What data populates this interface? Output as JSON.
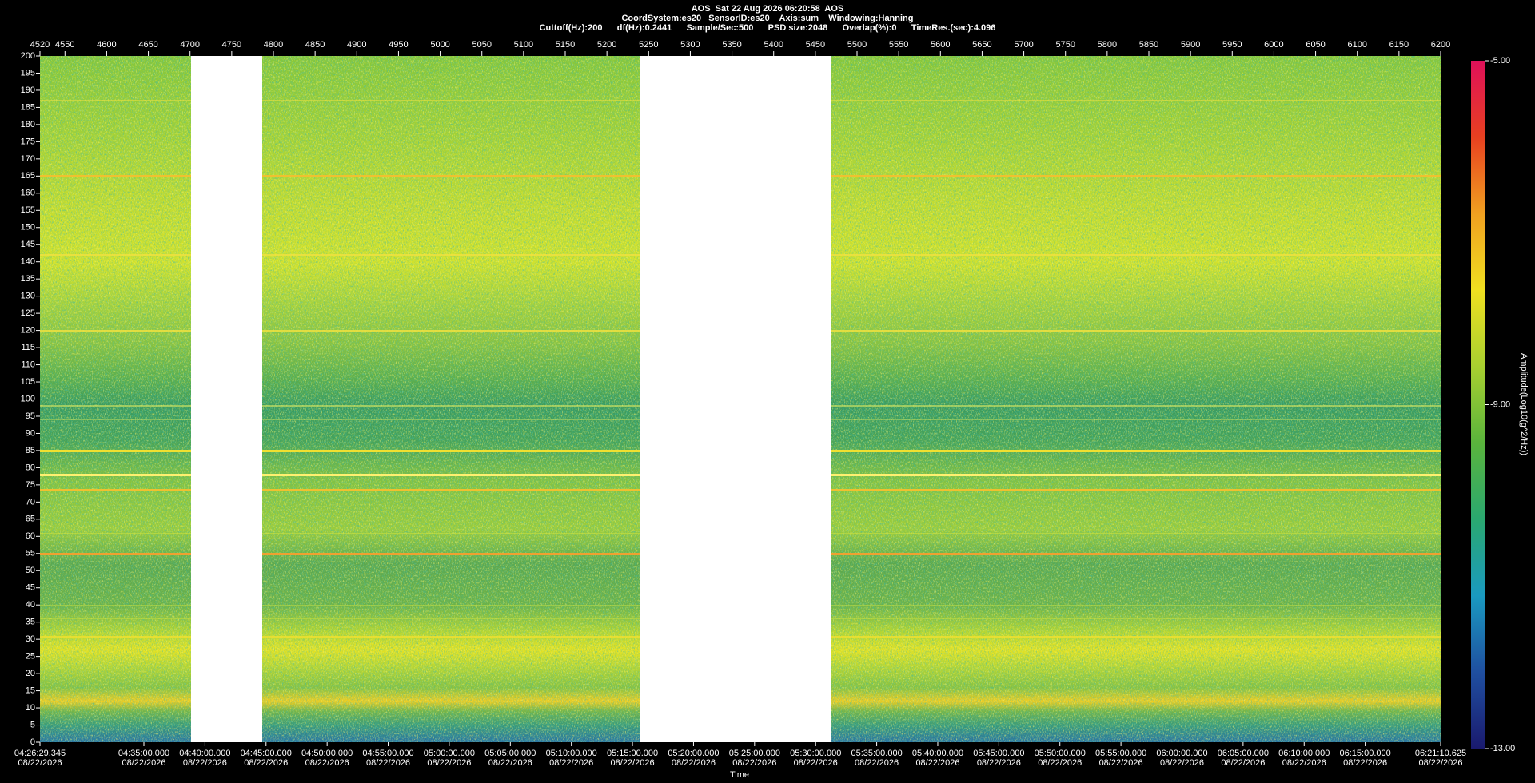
{
  "chart_data": {
    "type": "spectrogram",
    "title": "AOS  Sat 22 Aug 2026 06:20:58  AOS",
    "subtitle": [
      "CoordSystem:es20   SensorID:es20    Axis:sum    Windowing:Hanning",
      "Cuttoff(Hz):200      df(Hz):0.2441      Sample/Sec:500      PSD size:2048      Overlap(%):0      TimeRes.(sec):4.096"
    ],
    "xlim": [
      4520,
      6200
    ],
    "xticks": [
      4520,
      4550,
      4600,
      4650,
      4700,
      4750,
      4800,
      4850,
      4900,
      4950,
      5000,
      5050,
      5100,
      5150,
      5200,
      5250,
      5300,
      5350,
      5400,
      5450,
      5500,
      5550,
      5600,
      5650,
      5700,
      5750,
      5800,
      5850,
      5900,
      5950,
      6000,
      6050,
      6100,
      6150,
      6200
    ],
    "ylim": [
      0,
      200
    ],
    "yticks": [
      0,
      5,
      10,
      15,
      20,
      25,
      30,
      35,
      40,
      45,
      50,
      55,
      60,
      65,
      70,
      75,
      80,
      85,
      90,
      95,
      100,
      105,
      110,
      115,
      120,
      125,
      130,
      135,
      140,
      145,
      150,
      155,
      160,
      165,
      170,
      175,
      180,
      185,
      190,
      195,
      200
    ],
    "x2ticks": [
      {
        "value": 4520,
        "label": "04:26:29.345",
        "date": "08/22/2026"
      },
      {
        "value": 4644.67,
        "label": "04:35:00.000",
        "date": "08/22/2026"
      },
      {
        "value": 4717.91,
        "label": "04:40:00.000",
        "date": "08/22/2026"
      },
      {
        "value": 4791.16,
        "label": "04:45:00.000",
        "date": "08/22/2026"
      },
      {
        "value": 4864.4,
        "label": "04:50:00.000",
        "date": "08/22/2026"
      },
      {
        "value": 4937.64,
        "label": "04:55:00.000",
        "date": "08/22/2026"
      },
      {
        "value": 5010.88,
        "label": "05:00:00.000",
        "date": "08/22/2026"
      },
      {
        "value": 5084.12,
        "label": "05:05:00.000",
        "date": "08/22/2026"
      },
      {
        "value": 5157.37,
        "label": "05:10:00.000",
        "date": "08/22/2026"
      },
      {
        "value": 5230.61,
        "label": "05:15:00.000",
        "date": "08/22/2026"
      },
      {
        "value": 5303.85,
        "label": "05:20:00.000",
        "date": "08/22/2026"
      },
      {
        "value": 5377.09,
        "label": "05:25:00.000",
        "date": "08/22/2026"
      },
      {
        "value": 5450.33,
        "label": "05:30:00.000",
        "date": "08/22/2026"
      },
      {
        "value": 5523.58,
        "label": "05:35:00.000",
        "date": "08/22/2026"
      },
      {
        "value": 5596.82,
        "label": "05:40:00.000",
        "date": "08/22/2026"
      },
      {
        "value": 5670.06,
        "label": "05:45:00.000",
        "date": "08/22/2026"
      },
      {
        "value": 5743.3,
        "label": "05:50:00.000",
        "date": "08/22/2026"
      },
      {
        "value": 5816.54,
        "label": "05:55:00.000",
        "date": "08/22/2026"
      },
      {
        "value": 5889.79,
        "label": "06:00:00.000",
        "date": "08/22/2026"
      },
      {
        "value": 5963.03,
        "label": "06:05:00.000",
        "date": "08/22/2026"
      },
      {
        "value": 6036.27,
        "label": "06:10:00.000",
        "date": "08/22/2026"
      },
      {
        "value": 6109.51,
        "label": "06:15:00.000",
        "date": "08/22/2026"
      },
      {
        "value": 6200,
        "label": "06:21:10.625",
        "date": "08/22/2026"
      }
    ],
    "xlabel": "Time",
    "colorbar": {
      "label": "Amplitude(Log10(g^2/Hz))",
      "zlim": [
        -13,
        -5
      ],
      "ticks": [
        {
          "value": -5,
          "label": "-5.00"
        },
        {
          "value": -9,
          "label": "-9.00"
        },
        {
          "value": -13,
          "label": "-13.00"
        }
      ],
      "colors": [
        "#1a1a6e",
        "#1f4fa0",
        "#1a9ac0",
        "#2aa870",
        "#5ab43c",
        "#a8d030",
        "#f0e020",
        "#f0a020",
        "#e84020",
        "#e0105a"
      ]
    }
  }
}
